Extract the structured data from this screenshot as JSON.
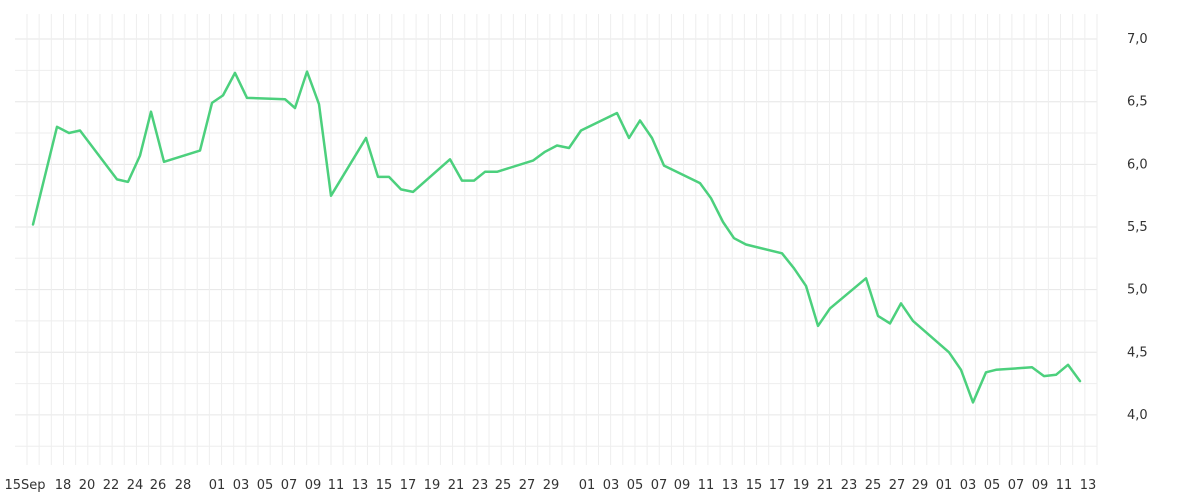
{
  "chart_data": {
    "type": "line",
    "title": "",
    "xlabel": "",
    "ylabel": "",
    "ylim": [
      3.6,
      7.2
    ],
    "yticks": [
      "7,0",
      "6,5",
      "6,0",
      "5,5",
      "5,0",
      "4,5",
      "4,0"
    ],
    "ytick_values": [
      7.0,
      6.5,
      6.0,
      5.5,
      5.0,
      4.5,
      4.0
    ],
    "x_tick_labels": [
      "15Sep",
      "18",
      "20",
      "22",
      "24",
      "26",
      "28",
      "01",
      "03",
      "05",
      "07",
      "09",
      "11",
      "13",
      "15",
      "17",
      "19",
      "21",
      "23",
      "25",
      "27",
      "29",
      "01",
      "03",
      "05",
      "07",
      "09",
      "11",
      "13",
      "15",
      "17",
      "19",
      "21",
      "23",
      "25",
      "27",
      "29",
      "01",
      "03",
      "05",
      "07",
      "09",
      "11",
      "13"
    ],
    "grid": true,
    "colors": {
      "line": "#4cd07d",
      "grid": "#eeeeee",
      "text": "#333333"
    },
    "series": [
      {
        "values": [
          5.52,
          6.3,
          6.25,
          6.27,
          5.88,
          5.86,
          6.07,
          6.42,
          6.02,
          6.11,
          6.49,
          6.55,
          6.73,
          6.53,
          6.52,
          6.45,
          6.74,
          6.48,
          5.75,
          6.21,
          5.9,
          5.9,
          5.8,
          5.78,
          6.04,
          5.87,
          5.87,
          5.94,
          5.94,
          6.03,
          6.1,
          6.15,
          6.13,
          6.27,
          6.41,
          6.21,
          6.35,
          6.21,
          5.99,
          5.85,
          5.73,
          5.54,
          5.41,
          5.36,
          5.29,
          5.17,
          5.03,
          4.71,
          4.85,
          5.09,
          4.79,
          4.73,
          4.89,
          4.75,
          4.5,
          4.36,
          4.1,
          4.34,
          4.36,
          4.38,
          4.31,
          4.32,
          4.4,
          4.27
        ]
      }
    ]
  }
}
